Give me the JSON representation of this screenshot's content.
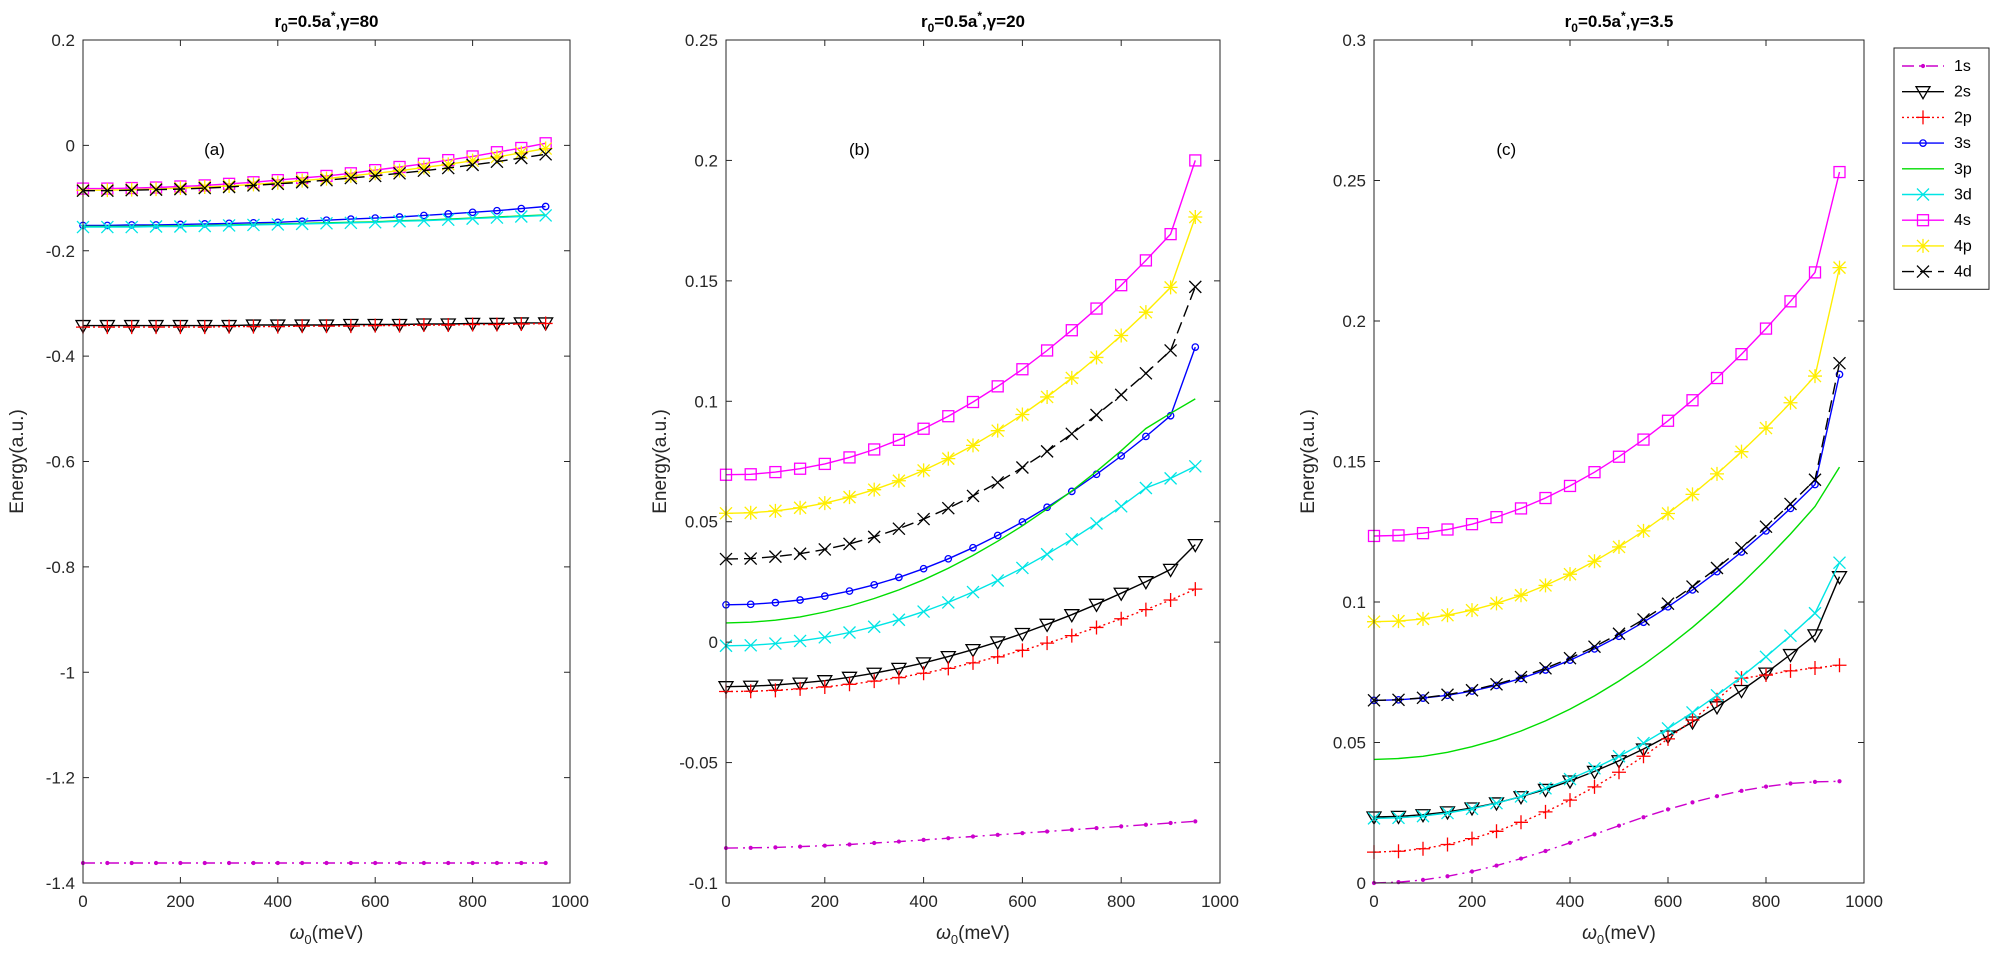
{
  "legend_title": "",
  "chart_data": [
    {
      "type": "line",
      "title": "r0=0.5a*,γ=80",
      "title_parts": {
        "r": "r",
        "sub": "0",
        "eq": "=0.5a",
        "sup": "*",
        "rest": ",γ=80"
      },
      "panel_tag": "(a)",
      "xlabel": "ω0(meV)",
      "xlabel_parts": {
        "sym": "ω",
        "sub": "0",
        "rest": "(meV)"
      },
      "ylabel": "Energy(a.u.)",
      "xlim": [
        0,
        1000
      ],
      "ylim": [
        -1.4,
        0.2
      ],
      "xticks": [
        "0",
        "200",
        "400",
        "600",
        "800",
        "1000"
      ],
      "yticks": [
        "-1.4",
        "-1.2",
        "-1",
        "-0.8",
        "-0.6",
        "-0.4",
        "-0.2",
        "0",
        "0.2"
      ],
      "series": [
        {
          "name": "1s",
          "x0": [
            0,
            950
          ],
          "y": [
            -1.362,
            -1.362,
            -1.362,
            -1.362,
            -1.362,
            -1.362,
            -1.362,
            -1.362,
            -1.362,
            -1.362,
            -1.362,
            -1.362,
            -1.362,
            -1.362,
            -1.362,
            -1.362,
            -1.362,
            -1.362,
            -1.362,
            -1.362
          ]
        },
        {
          "name": "2s",
          "y": [
            -0.342,
            -0.342,
            -0.342,
            -0.342,
            -0.342,
            -0.342,
            -0.342,
            -0.341,
            -0.341,
            -0.341,
            -0.341,
            -0.34,
            -0.34,
            -0.34,
            -0.339,
            -0.339,
            -0.338,
            -0.338,
            -0.337,
            -0.337
          ]
        },
        {
          "name": "2p",
          "y": [
            -0.345,
            -0.345,
            -0.345,
            -0.345,
            -0.345,
            -0.345,
            -0.344,
            -0.344,
            -0.344,
            -0.343,
            -0.343,
            -0.343,
            -0.342,
            -0.342,
            -0.341,
            -0.341,
            -0.34,
            -0.34,
            -0.339,
            -0.338
          ]
        },
        {
          "name": "3s",
          "y": [
            -0.152,
            -0.152,
            -0.151,
            -0.151,
            -0.15,
            -0.149,
            -0.148,
            -0.147,
            -0.146,
            -0.144,
            -0.142,
            -0.14,
            -0.138,
            -0.136,
            -0.133,
            -0.13,
            -0.127,
            -0.124,
            -0.12,
            -0.116
          ]
        },
        {
          "name": "3p",
          "y": [
            -0.154,
            -0.154,
            -0.154,
            -0.153,
            -0.153,
            -0.152,
            -0.151,
            -0.15,
            -0.149,
            -0.148,
            -0.147,
            -0.146,
            -0.145,
            -0.143,
            -0.142,
            -0.14,
            -0.138,
            -0.136,
            -0.134,
            -0.132
          ]
        },
        {
          "name": "3d",
          "y": [
            -0.155,
            -0.155,
            -0.155,
            -0.154,
            -0.154,
            -0.153,
            -0.152,
            -0.151,
            -0.15,
            -0.149,
            -0.148,
            -0.147,
            -0.146,
            -0.144,
            -0.143,
            -0.141,
            -0.139,
            -0.137,
            -0.135,
            -0.133
          ]
        },
        {
          "name": "4s",
          "y": [
            -0.082,
            -0.082,
            -0.081,
            -0.08,
            -0.078,
            -0.076,
            -0.073,
            -0.07,
            -0.066,
            -0.062,
            -0.058,
            -0.053,
            -0.047,
            -0.041,
            -0.035,
            -0.028,
            -0.021,
            -0.013,
            -0.005,
            0.004
          ]
        },
        {
          "name": "4p",
          "y": [
            -0.085,
            -0.085,
            -0.084,
            -0.083,
            -0.081,
            -0.079,
            -0.077,
            -0.074,
            -0.071,
            -0.067,
            -0.063,
            -0.058,
            -0.053,
            -0.048,
            -0.042,
            -0.036,
            -0.029,
            -0.022,
            -0.014,
            -0.006
          ]
        },
        {
          "name": "4d",
          "y": [
            -0.086,
            -0.086,
            -0.085,
            -0.084,
            -0.083,
            -0.081,
            -0.079,
            -0.076,
            -0.073,
            -0.07,
            -0.066,
            -0.062,
            -0.058,
            -0.053,
            -0.048,
            -0.043,
            -0.037,
            -0.031,
            -0.024,
            -0.017
          ]
        }
      ]
    },
    {
      "type": "line",
      "title": "r0=0.5a*,γ=20",
      "title_parts": {
        "r": "r",
        "sub": "0",
        "eq": "=0.5a",
        "sup": "*",
        "rest": ",γ=20"
      },
      "panel_tag": "(b)",
      "xlabel": "ω0(meV)",
      "xlabel_parts": {
        "sym": "ω",
        "sub": "0",
        "rest": "(meV)"
      },
      "ylabel": "Energy(a.u.)",
      "xlim": [
        0,
        1000
      ],
      "ylim": [
        -0.1,
        0.25
      ],
      "xticks": [
        "0",
        "200",
        "400",
        "600",
        "800",
        "1000"
      ],
      "yticks": [
        "-0.1",
        "-0.05",
        "0",
        "0.05",
        "0.1",
        "0.15",
        "0.2",
        "0.25"
      ],
      "series": [
        {
          "name": "1s",
          "y": [
            -0.0855,
            -0.0854,
            -0.0852,
            -0.0849,
            -0.0845,
            -0.084,
            -0.0834,
            -0.0828,
            -0.0821,
            -0.0814,
            -0.0807,
            -0.08,
            -0.0793,
            -0.0786,
            -0.0779,
            -0.0772,
            -0.0765,
            -0.0758,
            -0.0751,
            -0.0744
          ]
        },
        {
          "name": "2s",
          "y": [
            -0.0185,
            -0.0183,
            -0.0178,
            -0.017,
            -0.016,
            -0.0146,
            -0.0129,
            -0.0109,
            -0.0086,
            -0.006,
            -0.0031,
            0.0001,
            0.0036,
            0.0074,
            0.0114,
            0.0157,
            0.0203,
            0.0251,
            0.0302,
            0.0405
          ]
        },
        {
          "name": "2p",
          "y": [
            -0.0205,
            -0.0204,
            -0.02,
            -0.0194,
            -0.0186,
            -0.0175,
            -0.0162,
            -0.0147,
            -0.0129,
            -0.0109,
            -0.0086,
            -0.0061,
            -0.0034,
            -0.0004,
            0.0027,
            0.0061,
            0.0097,
            0.0135,
            0.0175,
            0.022
          ]
        },
        {
          "name": "3s",
          "y": [
            0.0155,
            0.0157,
            0.0164,
            0.0175,
            0.0191,
            0.0212,
            0.0238,
            0.0269,
            0.0305,
            0.0346,
            0.0392,
            0.0443,
            0.0499,
            0.056,
            0.0626,
            0.0697,
            0.0773,
            0.0854,
            0.094,
            0.1225
          ]
        },
        {
          "name": "3p",
          "y": [
            0.008,
            0.0083,
            0.0091,
            0.0105,
            0.0125,
            0.015,
            0.0181,
            0.0217,
            0.0259,
            0.0307,
            0.036,
            0.0419,
            0.0483,
            0.0553,
            0.0628,
            0.0709,
            0.0795,
            0.0887,
            0.095,
            0.101
          ]
        },
        {
          "name": "3d",
          "y": [
            -0.0015,
            -0.0013,
            -0.0006,
            0.0005,
            0.002,
            0.004,
            0.0064,
            0.0093,
            0.0127,
            0.0165,
            0.0208,
            0.0256,
            0.0308,
            0.0365,
            0.0427,
            0.0493,
            0.0564,
            0.064,
            0.068,
            0.073
          ]
        },
        {
          "name": "4s",
          "y": [
            0.0695,
            0.0697,
            0.0706,
            0.072,
            0.074,
            0.0767,
            0.08,
            0.084,
            0.0886,
            0.0938,
            0.0997,
            0.1062,
            0.1133,
            0.1211,
            0.1295,
            0.1385,
            0.1482,
            0.1585,
            0.1694,
            0.2
          ]
        },
        {
          "name": "4p",
          "y": [
            0.0535,
            0.0537,
            0.0545,
            0.0558,
            0.0577,
            0.0602,
            0.0633,
            0.067,
            0.0713,
            0.0762,
            0.0817,
            0.0878,
            0.0945,
            0.1018,
            0.1097,
            0.1182,
            0.1273,
            0.137,
            0.1473,
            0.1765
          ]
        },
        {
          "name": "4d",
          "y": [
            0.0345,
            0.0347,
            0.0355,
            0.0367,
            0.0385,
            0.0408,
            0.0437,
            0.0471,
            0.0511,
            0.0556,
            0.0607,
            0.0663,
            0.0725,
            0.0792,
            0.0865,
            0.0943,
            0.1027,
            0.1116,
            0.1211,
            0.1475
          ]
        }
      ]
    },
    {
      "type": "line",
      "title": "r0=0.5a*,γ=3.5",
      "title_parts": {
        "r": "r",
        "sub": "0",
        "eq": "=0.5a",
        "sup": "*",
        "rest": ",γ=3.5"
      },
      "panel_tag": "(c)",
      "xlabel": "ω0(meV)",
      "xlabel_parts": {
        "sym": "ω",
        "sub": "0",
        "rest": "(meV)"
      },
      "ylabel": "Energy(a.u.)",
      "xlim": [
        0,
        1000
      ],
      "ylim": [
        0,
        0.3
      ],
      "xticks": [
        "0",
        "200",
        "400",
        "600",
        "800",
        "1000"
      ],
      "yticks": [
        "0",
        "0.05",
        "0.1",
        "0.15",
        "0.2",
        "0.25",
        "0.3"
      ],
      "series": [
        {
          "name": "1s",
          "y": [
            0.0,
            0.0003,
            0.0011,
            0.0024,
            0.0041,
            0.0062,
            0.0087,
            0.0114,
            0.0143,
            0.0173,
            0.0204,
            0.0234,
            0.0262,
            0.0287,
            0.0309,
            0.0328,
            0.0343,
            0.0354,
            0.036,
            0.0362
          ]
        },
        {
          "name": "2s",
          "y": [
            0.0235,
            0.0237,
            0.0243,
            0.0253,
            0.0267,
            0.0285,
            0.0307,
            0.0333,
            0.0363,
            0.0397,
            0.0435,
            0.0477,
            0.0523,
            0.0573,
            0.0627,
            0.0685,
            0.0747,
            0.0813,
            0.0883,
            0.109
          ]
        },
        {
          "name": "2p",
          "y": [
            0.011,
            0.0113,
            0.0122,
            0.0137,
            0.0158,
            0.0184,
            0.0216,
            0.0253,
            0.0295,
            0.0342,
            0.0394,
            0.0451,
            0.0513,
            0.058,
            0.0652,
            0.0729,
            0.074,
            0.0755,
            0.0765,
            0.0775
          ]
        },
        {
          "name": "3s",
          "y": [
            0.065,
            0.0652,
            0.0658,
            0.0668,
            0.0683,
            0.0703,
            0.0728,
            0.0758,
            0.0793,
            0.0833,
            0.0878,
            0.0928,
            0.0983,
            0.1043,
            0.1108,
            0.1178,
            0.1253,
            0.1333,
            0.1418,
            0.181
          ]
        },
        {
          "name": "3p",
          "y": [
            0.044,
            0.0443,
            0.0451,
            0.0465,
            0.0485,
            0.051,
            0.0541,
            0.0577,
            0.0619,
            0.0666,
            0.0719,
            0.0777,
            0.0841,
            0.091,
            0.0985,
            0.1065,
            0.1151,
            0.1242,
            0.134,
            0.148
          ]
        },
        {
          "name": "3d",
          "y": [
            0.023,
            0.0232,
            0.0238,
            0.0249,
            0.0264,
            0.0284,
            0.0308,
            0.0337,
            0.037,
            0.0408,
            0.0451,
            0.0498,
            0.055,
            0.0607,
            0.0668,
            0.0734,
            0.0805,
            0.088,
            0.096,
            0.114
          ]
        },
        {
          "name": "4s",
          "y": [
            0.1235,
            0.1237,
            0.1245,
            0.1258,
            0.1277,
            0.1302,
            0.1333,
            0.137,
            0.1413,
            0.1462,
            0.1517,
            0.1578,
            0.1645,
            0.1718,
            0.1797,
            0.1882,
            0.1973,
            0.207,
            0.2173,
            0.253
          ]
        },
        {
          "name": "4p",
          "y": [
            0.093,
            0.0932,
            0.094,
            0.0953,
            0.0971,
            0.0995,
            0.1024,
            0.1059,
            0.1099,
            0.1145,
            0.1196,
            0.1253,
            0.1315,
            0.1383,
            0.1456,
            0.1535,
            0.1619,
            0.1709,
            0.1804,
            0.219
          ]
        },
        {
          "name": "4d",
          "y": [
            0.065,
            0.0652,
            0.0659,
            0.067,
            0.0686,
            0.0707,
            0.0733,
            0.0764,
            0.08,
            0.0841,
            0.0887,
            0.0938,
            0.0994,
            0.1055,
            0.1121,
            0.1192,
            0.1268,
            0.1349,
            0.1435,
            0.185
          ]
        }
      ]
    }
  ],
  "x_values": [
    0,
    50,
    100,
    150,
    200,
    250,
    300,
    350,
    400,
    450,
    500,
    550,
    600,
    650,
    700,
    750,
    800,
    850,
    900,
    950
  ],
  "legend": [
    {
      "name": "1s",
      "color": "#cc00cc",
      "dash": "12 5 2 5",
      "marker": "dot"
    },
    {
      "name": "2s",
      "color": "#000000",
      "dash": "",
      "marker": "triangle-down"
    },
    {
      "name": "2p",
      "color": "#ff0000",
      "dash": "2 3",
      "marker": "plus"
    },
    {
      "name": "3s",
      "color": "#0000ff",
      "dash": "",
      "marker": "circle"
    },
    {
      "name": "3p",
      "color": "#00dd00",
      "dash": "",
      "marker": "none"
    },
    {
      "name": "3d",
      "color": "#00e5e5",
      "dash": "",
      "marker": "x"
    },
    {
      "name": "4s",
      "color": "#ff00ff",
      "dash": "",
      "marker": "square"
    },
    {
      "name": "4p",
      "color": "#ffee00",
      "dash": "",
      "marker": "asterisk"
    },
    {
      "name": "4d",
      "color": "#000000",
      "dash": "12 6",
      "marker": "x"
    }
  ]
}
